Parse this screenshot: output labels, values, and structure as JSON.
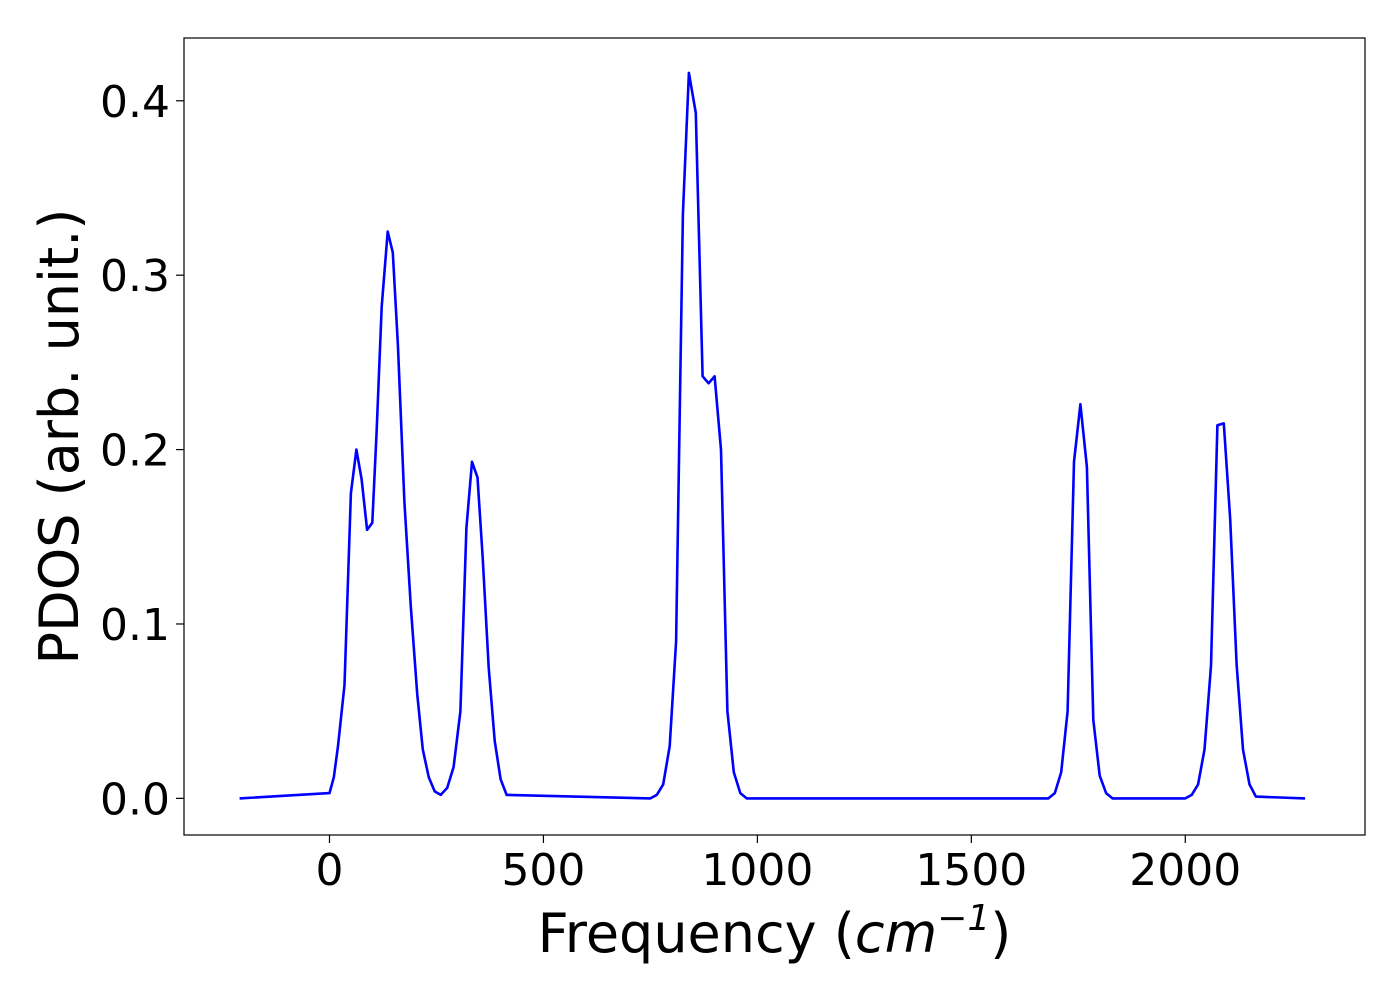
{
  "chart_data": {
    "type": "line",
    "title": "",
    "xlabel": {
      "prefix": "Frequency (",
      "unit_base": "cm",
      "unit_exponent": "−1",
      "suffix": ")"
    },
    "ylabel": "PDOS (arb. unit.)",
    "xlim": [
      -340,
      2420
    ],
    "ylim": [
      -0.021,
      0.436
    ],
    "xticks": [
      0,
      500,
      1000,
      1500,
      2000
    ],
    "xtick_labels": [
      "0",
      "500",
      "1000",
      "1500",
      "2000"
    ],
    "yticks": [
      0.0,
      0.1,
      0.2,
      0.3,
      0.4
    ],
    "ytick_labels": [
      "0.0",
      "0.1",
      "0.2",
      "0.3",
      "0.4"
    ],
    "grid": false,
    "legend": "none",
    "series": [
      {
        "color": "#0000ff",
        "x": [
          -210,
          0,
          10,
          20,
          35,
          50,
          63,
          75,
          88,
          100,
          110,
          122,
          136,
          148,
          160,
          175,
          190,
          205,
          218,
          232,
          246,
          260,
          275,
          290,
          306,
          320,
          333,
          346,
          358,
          372,
          386,
          400,
          414,
          750,
          765,
          780,
          795,
          810,
          826,
          840,
          856,
          872,
          886,
          900,
          915,
          930,
          945,
          960,
          975,
          1680,
          1695,
          1710,
          1725,
          1740,
          1755,
          1770,
          1785,
          1800,
          1815,
          1830,
          2000,
          2015,
          2030,
          2045,
          2060,
          2075,
          2090,
          2105,
          2120,
          2135,
          2150,
          2165,
          2280
        ],
        "y": [
          0.0,
          0.003,
          0.012,
          0.03,
          0.065,
          0.175,
          0.2,
          0.183,
          0.154,
          0.158,
          0.21,
          0.282,
          0.325,
          0.313,
          0.26,
          0.17,
          0.11,
          0.06,
          0.028,
          0.012,
          0.004,
          0.002,
          0.006,
          0.018,
          0.05,
          0.155,
          0.193,
          0.184,
          0.138,
          0.075,
          0.033,
          0.011,
          0.002,
          0.0,
          0.002,
          0.008,
          0.03,
          0.09,
          0.335,
          0.416,
          0.393,
          0.242,
          0.238,
          0.242,
          0.2,
          0.05,
          0.015,
          0.003,
          0.0,
          0.0,
          0.003,
          0.015,
          0.05,
          0.193,
          0.226,
          0.19,
          0.045,
          0.013,
          0.003,
          0.0,
          0.0,
          0.002,
          0.008,
          0.028,
          0.076,
          0.214,
          0.215,
          0.16,
          0.077,
          0.028,
          0.008,
          0.001,
          0.0
        ]
      }
    ]
  }
}
